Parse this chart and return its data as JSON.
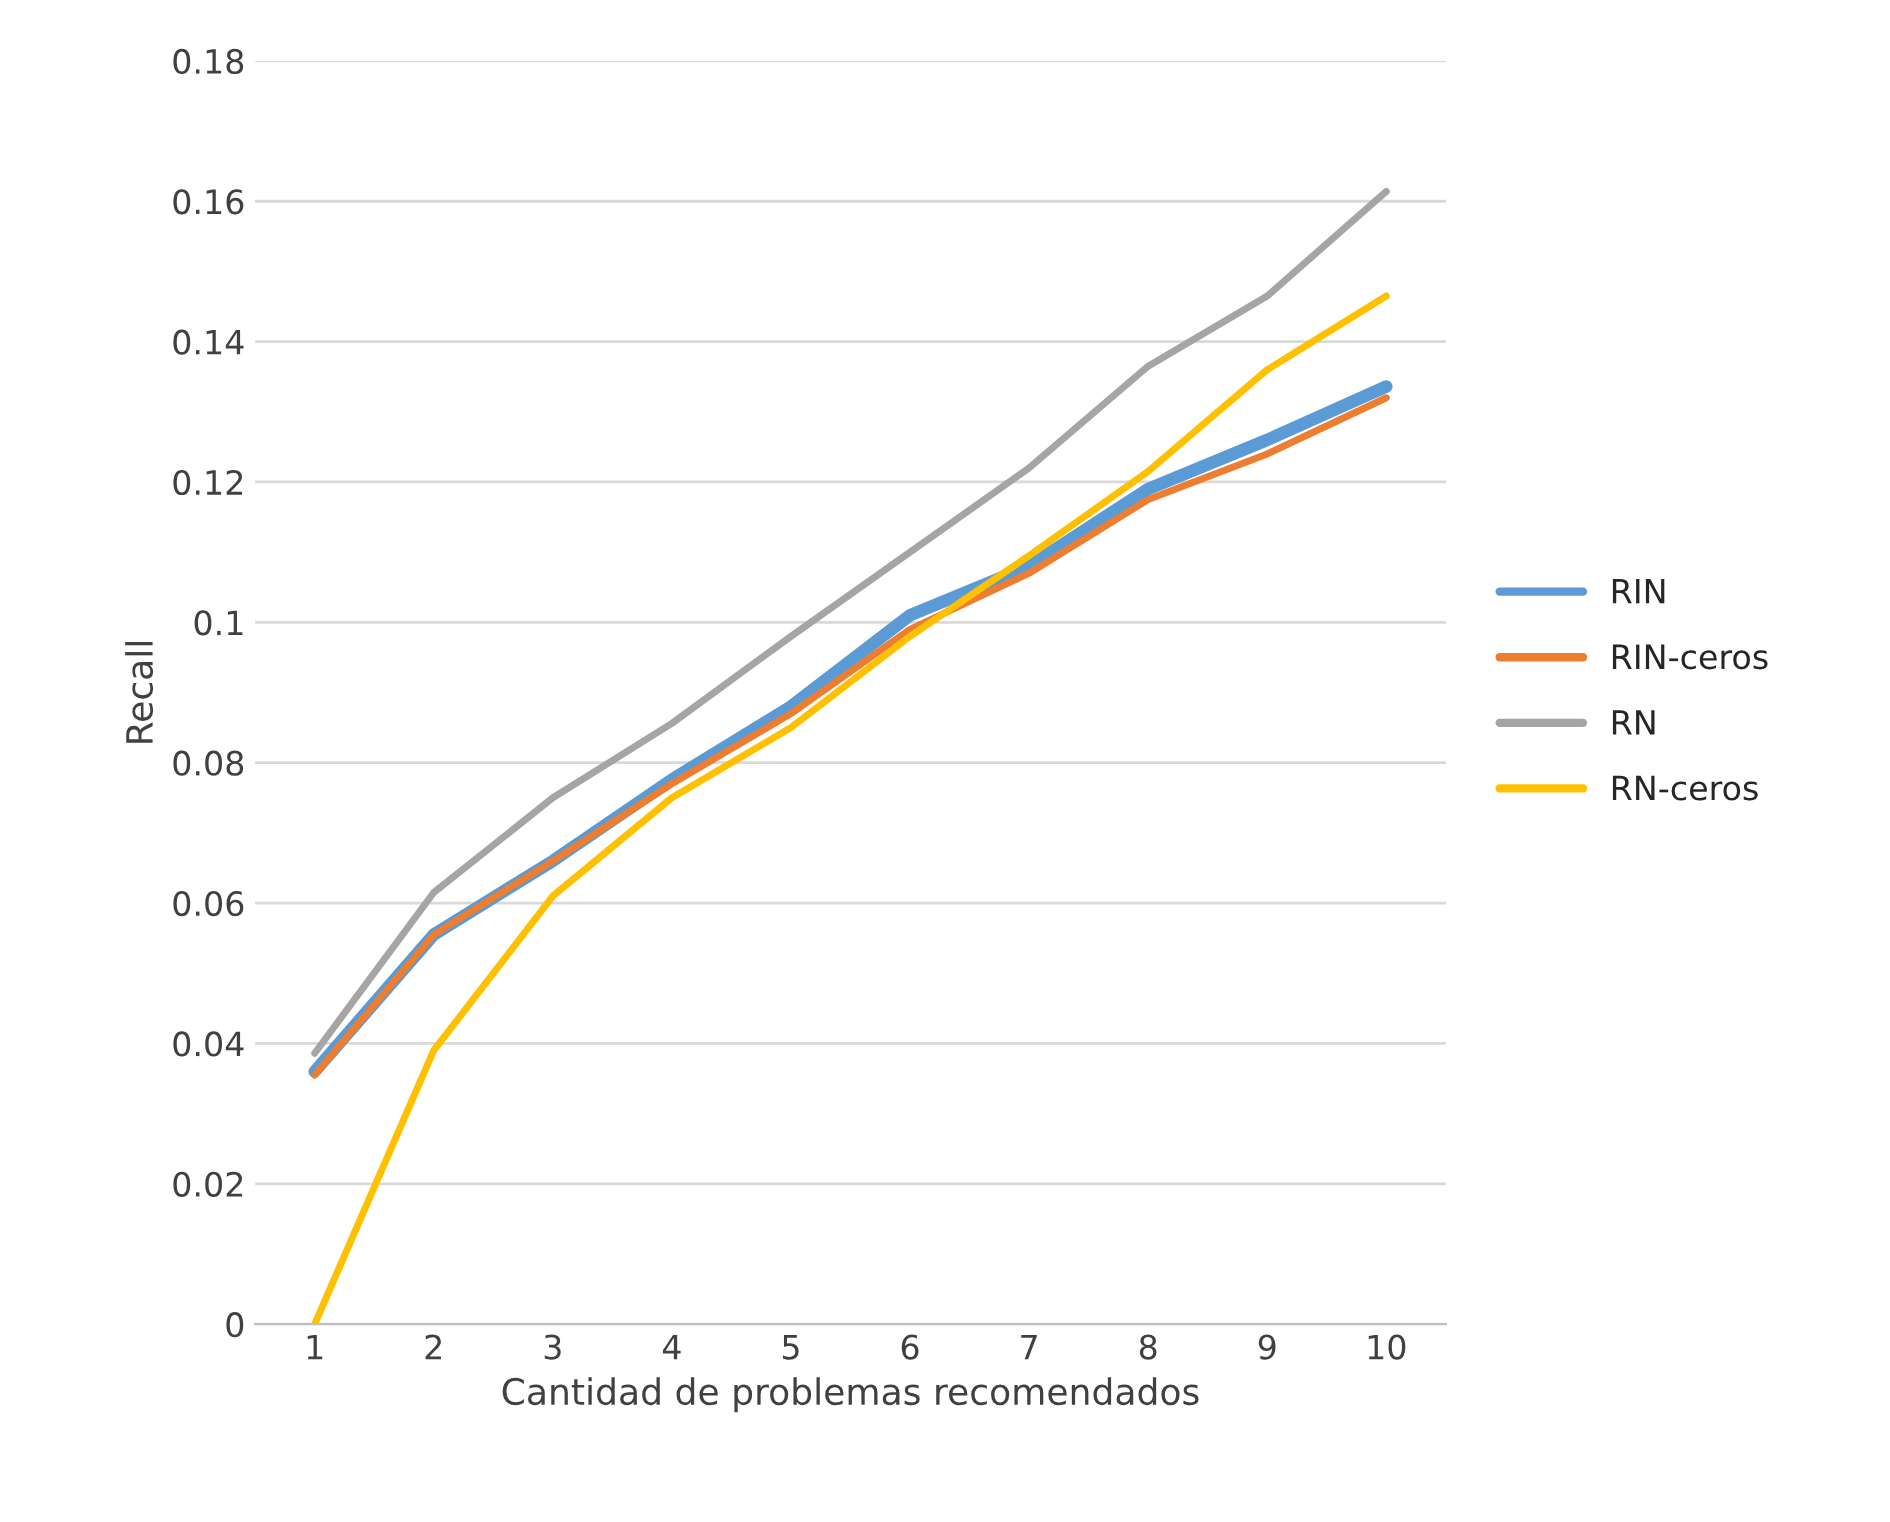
{
  "chart_data": {
    "type": "line",
    "xlabel": "Cantidad de problemas recomendados",
    "ylabel": "Recall",
    "categories": [
      "1",
      "2",
      "3",
      "4",
      "5",
      "6",
      "7",
      "8",
      "9",
      "10"
    ],
    "series": [
      {
        "name": "RIN",
        "color": "#5b9bd5",
        "values": [
          0.036,
          0.0555,
          0.066,
          0.0776,
          0.088,
          0.101,
          0.108,
          0.119,
          0.126,
          0.1336
        ]
      },
      {
        "name": "RIN-ceros",
        "color": "#ed7d31",
        "values": [
          0.0355,
          0.0555,
          0.066,
          0.077,
          0.087,
          0.099,
          0.107,
          0.1175,
          0.124,
          0.132
        ]
      },
      {
        "name": "RN",
        "color": "#a5a5a5",
        "values": [
          0.0386,
          0.0615,
          0.075,
          0.0856,
          0.098,
          0.11,
          0.122,
          0.1365,
          0.1465,
          0.1614
        ]
      },
      {
        "name": "RN-ceros",
        "color": "#ffc000",
        "values": [
          0,
          0.039,
          0.061,
          0.075,
          0.085,
          0.098,
          0.1095,
          0.1215,
          0.136,
          0.1465
        ]
      }
    ],
    "ylim": [
      0,
      0.18
    ],
    "yticks": [
      0,
      0.02,
      0.04,
      0.06,
      0.08,
      0.1,
      0.12,
      0.14,
      0.16,
      0.18
    ],
    "grid": "y",
    "legend": "right",
    "marker": "none",
    "line_style": "solid"
  }
}
